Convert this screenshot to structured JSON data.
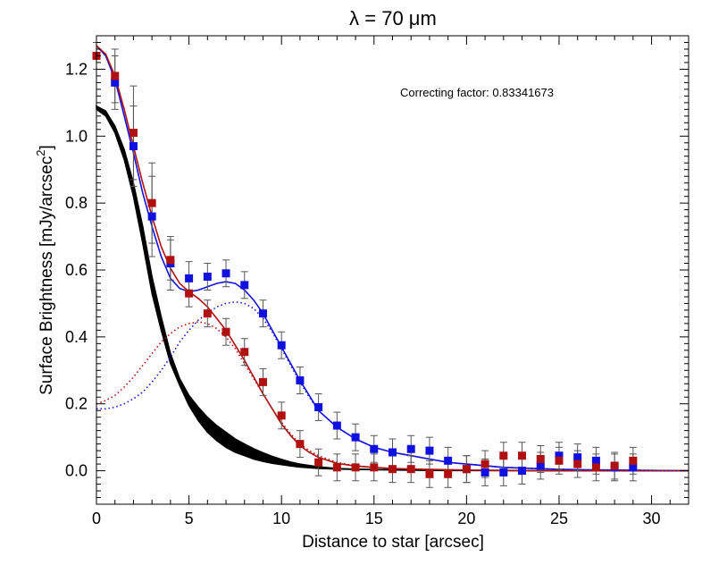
{
  "chart_data": {
    "type": "scatter",
    "title": "λ = 70 μm",
    "xlabel": "Distance to star [arcsec]",
    "ylabel_main": "Surface Brightness [mJy/arcsec",
    "ylabel_sup": "2",
    "ylabel_close": "]",
    "annotation": "Correcting factor: 0.83341673",
    "xlim": [
      0,
      32
    ],
    "ylim": [
      -0.1,
      1.3
    ],
    "x_ticks": [
      0,
      5,
      10,
      15,
      20,
      25,
      30
    ],
    "y_ticks": [
      0.0,
      0.2,
      0.4,
      0.6,
      0.8,
      1.0,
      1.2
    ],
    "y_tick_labels": [
      "0.0",
      "0.2",
      "0.4",
      "0.6",
      "0.8",
      "1.0",
      "1.2"
    ],
    "grid": false,
    "colors": {
      "blue": "#1010e0",
      "red": "#b01010",
      "black": "#000000",
      "errorbar": "#555555"
    },
    "series": [
      {
        "color": "blue",
        "x": [
          1,
          2,
          3,
          4,
          5,
          6,
          7,
          8,
          9,
          10,
          11,
          12,
          13,
          14,
          15,
          16,
          17,
          18,
          19,
          20,
          21,
          22,
          23,
          24,
          25,
          26,
          27,
          28,
          29
        ],
        "y": [
          1.16,
          0.97,
          0.76,
          0.62,
          0.575,
          0.58,
          0.59,
          0.555,
          0.47,
          0.375,
          0.27,
          0.19,
          0.135,
          0.1,
          0.065,
          0.055,
          0.065,
          0.06,
          0.03,
          0.005,
          -0.005,
          -0.005,
          0.0,
          0.015,
          0.045,
          0.04,
          0.03,
          0.01,
          0.01
        ],
        "yerr": [
          0.08,
          0.12,
          0.12,
          0.08,
          0.05,
          0.04,
          0.04,
          0.04,
          0.04,
          0.04,
          0.04,
          0.04,
          0.04,
          0.04,
          0.04,
          0.04,
          0.04,
          0.04,
          0.04,
          0.04,
          0.04,
          0.04,
          0.04,
          0.04,
          0.04,
          0.04,
          0.04,
          0.04,
          0.04
        ]
      },
      {
        "color": "red",
        "x": [
          0,
          1,
          2,
          3,
          4,
          5,
          6,
          7,
          8,
          9,
          10,
          11,
          12,
          13,
          14,
          15,
          16,
          17,
          18,
          19,
          20,
          21,
          22,
          23,
          24,
          25,
          26,
          27,
          28,
          29
        ],
        "y": [
          1.24,
          1.18,
          1.01,
          0.8,
          0.63,
          0.53,
          0.47,
          0.415,
          0.355,
          0.265,
          0.165,
          0.08,
          0.025,
          0.01,
          0.01,
          0.01,
          0.005,
          0.005,
          -0.01,
          -0.01,
          0.005,
          0.02,
          0.045,
          0.045,
          0.035,
          0.03,
          0.02,
          0.01,
          0.015,
          0.03
        ],
        "yerr": [
          0.04,
          0.08,
          0.14,
          0.12,
          0.06,
          0.04,
          0.04,
          0.04,
          0.04,
          0.04,
          0.04,
          0.04,
          0.04,
          0.04,
          0.04,
          0.04,
          0.04,
          0.04,
          0.04,
          0.04,
          0.04,
          0.04,
          0.04,
          0.04,
          0.04,
          0.04,
          0.04,
          0.04,
          0.04,
          0.04
        ]
      }
    ],
    "model_curves": [
      {
        "color": "blue",
        "style": "solid",
        "x": [
          0,
          0.5,
          1,
          1.5,
          2,
          2.5,
          3,
          3.5,
          4,
          4.5,
          5,
          5.5,
          6,
          6.5,
          7,
          7.5,
          8,
          8.5,
          9,
          9.5,
          10,
          10.5,
          11,
          11.5,
          12,
          13,
          14,
          15,
          16,
          17,
          18,
          19,
          20,
          22,
          24,
          26,
          28,
          30,
          32
        ],
        "y": [
          1.27,
          1.24,
          1.17,
          1.06,
          0.95,
          0.83,
          0.73,
          0.64,
          0.575,
          0.545,
          0.535,
          0.54,
          0.55,
          0.56,
          0.565,
          0.56,
          0.54,
          0.51,
          0.47,
          0.42,
          0.37,
          0.32,
          0.27,
          0.225,
          0.18,
          0.13,
          0.095,
          0.07,
          0.055,
          0.045,
          0.035,
          0.025,
          0.02,
          0.01,
          0.006,
          0.003,
          0.002,
          0.001,
          0.0
        ]
      },
      {
        "color": "red",
        "style": "solid",
        "x": [
          0,
          0.5,
          1,
          1.5,
          2,
          2.5,
          3,
          3.5,
          4,
          4.5,
          5,
          5.5,
          6,
          6.5,
          7,
          7.5,
          8,
          8.5,
          9,
          9.5,
          10,
          10.5,
          11,
          11.5,
          12,
          13,
          14,
          15,
          16,
          17,
          18,
          20,
          22,
          24,
          26,
          28,
          30,
          32
        ],
        "y": [
          1.27,
          1.245,
          1.18,
          1.08,
          0.97,
          0.86,
          0.76,
          0.67,
          0.605,
          0.56,
          0.535,
          0.515,
          0.49,
          0.455,
          0.42,
          0.375,
          0.33,
          0.28,
          0.23,
          0.185,
          0.14,
          0.105,
          0.075,
          0.055,
          0.04,
          0.022,
          0.014,
          0.01,
          0.007,
          0.005,
          0.004,
          0.002,
          0.001,
          0.0005,
          0.0,
          0.0,
          0.0,
          0.0
        ]
      },
      {
        "color": "blue",
        "style": "dotted",
        "x": [
          0,
          0.5,
          1,
          1.5,
          2,
          2.5,
          3,
          3.5,
          4,
          4.5,
          5,
          5.5,
          6,
          6.5,
          7,
          7.5,
          8,
          8.5,
          9,
          9.5,
          10,
          10.5,
          11,
          11.5,
          12,
          13,
          14,
          15,
          16,
          17,
          18,
          19,
          20,
          22,
          24,
          26,
          28,
          30,
          32
        ],
        "y": [
          0.185,
          0.185,
          0.19,
          0.2,
          0.215,
          0.235,
          0.265,
          0.3,
          0.34,
          0.385,
          0.42,
          0.45,
          0.47,
          0.49,
          0.5,
          0.505,
          0.5,
          0.485,
          0.455,
          0.415,
          0.365,
          0.315,
          0.265,
          0.22,
          0.18,
          0.13,
          0.095,
          0.07,
          0.055,
          0.045,
          0.035,
          0.025,
          0.02,
          0.01,
          0.006,
          0.003,
          0.002,
          0.001,
          0.0
        ]
      },
      {
        "color": "red",
        "style": "dotted",
        "x": [
          0,
          0.5,
          1,
          1.5,
          2,
          2.5,
          3,
          3.5,
          4,
          4.5,
          5,
          5.5,
          6,
          6.5,
          7,
          7.5,
          8,
          8.5,
          9,
          9.5,
          10,
          10.5,
          11,
          11.5,
          12,
          13,
          14,
          15,
          16,
          18,
          20,
          24,
          28,
          32
        ],
        "y": [
          0.2,
          0.21,
          0.225,
          0.25,
          0.28,
          0.315,
          0.35,
          0.385,
          0.41,
          0.43,
          0.44,
          0.445,
          0.44,
          0.425,
          0.4,
          0.365,
          0.32,
          0.275,
          0.23,
          0.185,
          0.145,
          0.11,
          0.08,
          0.06,
          0.045,
          0.025,
          0.015,
          0.01,
          0.007,
          0.004,
          0.002,
          0.0005,
          0.0,
          0.0
        ]
      }
    ],
    "star_band": {
      "color": "black",
      "x": [
        0,
        0.5,
        1,
        1.5,
        2,
        2.5,
        3,
        3.5,
        4,
        4.5,
        5,
        5.5,
        6,
        6.5,
        7,
        7.5,
        8,
        8.5,
        9,
        9.5,
        10,
        10.5,
        11,
        12,
        13,
        14,
        15,
        16,
        18,
        20,
        24,
        28,
        32
      ],
      "y_low": [
        1.08,
        1.06,
        1.01,
        0.93,
        0.82,
        0.68,
        0.53,
        0.42,
        0.32,
        0.255,
        0.195,
        0.15,
        0.115,
        0.09,
        0.07,
        0.055,
        0.045,
        0.035,
        0.028,
        0.022,
        0.018,
        0.014,
        0.011,
        0.007,
        0.005,
        0.004,
        0.003,
        0.002,
        0.001,
        0.0005,
        0.0,
        0.0,
        0.0
      ],
      "y_high": [
        1.09,
        1.075,
        1.03,
        0.96,
        0.86,
        0.73,
        0.58,
        0.46,
        0.35,
        0.275,
        0.225,
        0.19,
        0.16,
        0.135,
        0.115,
        0.095,
        0.08,
        0.066,
        0.054,
        0.043,
        0.034,
        0.026,
        0.02,
        0.012,
        0.007,
        0.005,
        0.004,
        0.003,
        0.0015,
        0.0008,
        0.0003,
        0.0,
        0.0
      ]
    }
  }
}
